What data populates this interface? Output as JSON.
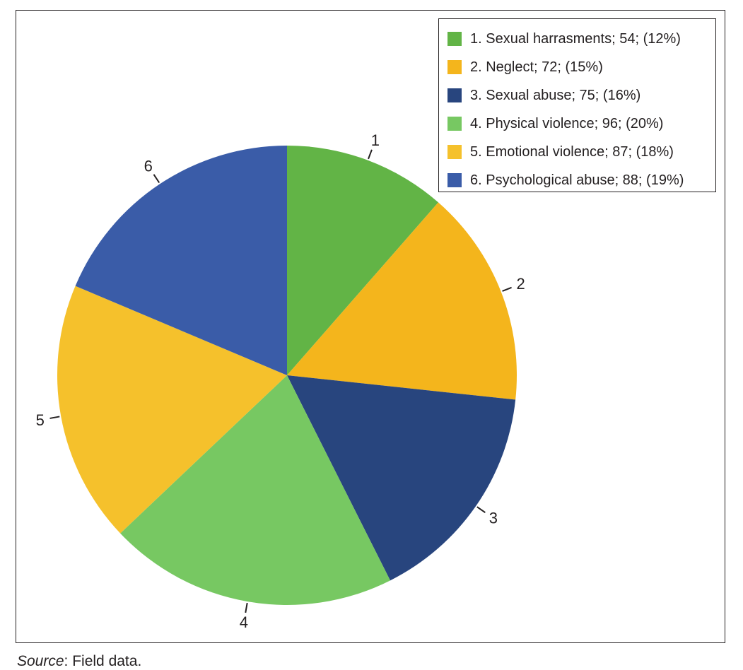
{
  "chart_data": {
    "type": "pie",
    "start_angle_deg": 0,
    "direction": "clockwise",
    "slices": [
      {
        "id": "1",
        "label": "1. Sexual harrasments; 54; (12%)",
        "value": 54,
        "percent": 12,
        "color": "#62b446"
      },
      {
        "id": "2",
        "label": "2. Neglect; 72; (15%)",
        "value": 72,
        "percent": 15,
        "color": "#f4b51c"
      },
      {
        "id": "3",
        "label": "3. Sexual abuse; 75; (16%)",
        "value": 75,
        "percent": 16,
        "color": "#28457e"
      },
      {
        "id": "4",
        "label": "4. Physical violence; 96; (20%)",
        "value": 96,
        "percent": 20,
        "color": "#77c862"
      },
      {
        "id": "5",
        "label": "5. Emotional violence; 87; (18%)",
        "value": 87,
        "percent": 18,
        "color": "#f5c12c"
      },
      {
        "id": "6",
        "label": "6. Psychological abuse; 88; (19%)",
        "value": 88,
        "percent": 19,
        "color": "#3a5ca8"
      }
    ],
    "legend_position": "top-right"
  },
  "source": {
    "prefix": "Source",
    "text": ": Field data."
  }
}
